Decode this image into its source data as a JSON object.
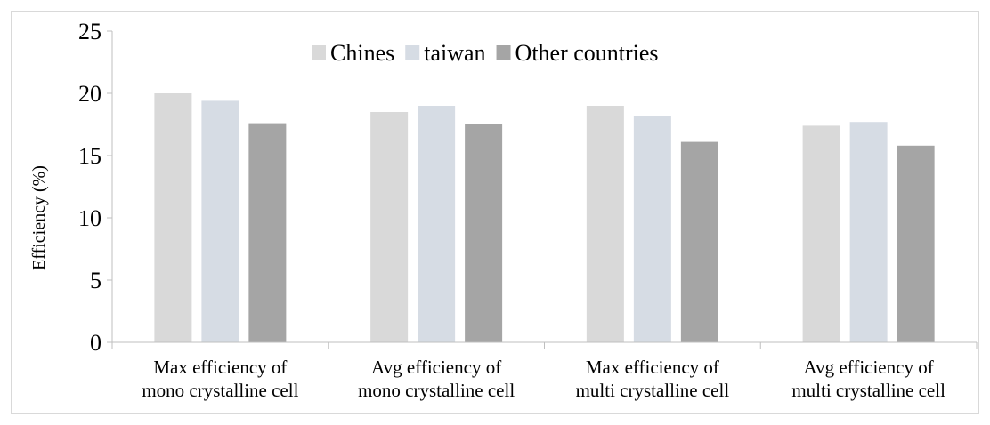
{
  "chart_data": {
    "type": "bar",
    "title": "",
    "xlabel": "",
    "ylabel": "Efficiency (%)",
    "ylim": [
      0,
      25
    ],
    "yticks": [
      0,
      5,
      10,
      15,
      20,
      25
    ],
    "grid": false,
    "legend_position": "top-center",
    "categories": [
      [
        "Max efficiency of",
        "mono crystalline cell"
      ],
      [
        "Avg efficiency of",
        "mono crystalline cell"
      ],
      [
        "Max efficiency of",
        "multi crystalline cell"
      ],
      [
        "Avg efficiency of",
        "multi crystalline cell"
      ]
    ],
    "series": [
      {
        "name": "Chines",
        "color": "#d9d9d9",
        "values": [
          20.0,
          18.5,
          19.0,
          17.4
        ]
      },
      {
        "name": "taiwan",
        "color": "#d6dce4",
        "values": [
          19.4,
          19.0,
          18.2,
          17.7
        ]
      },
      {
        "name": "Other countries",
        "color": "#a5a5a5",
        "values": [
          17.6,
          17.5,
          16.1,
          15.8
        ]
      }
    ]
  }
}
